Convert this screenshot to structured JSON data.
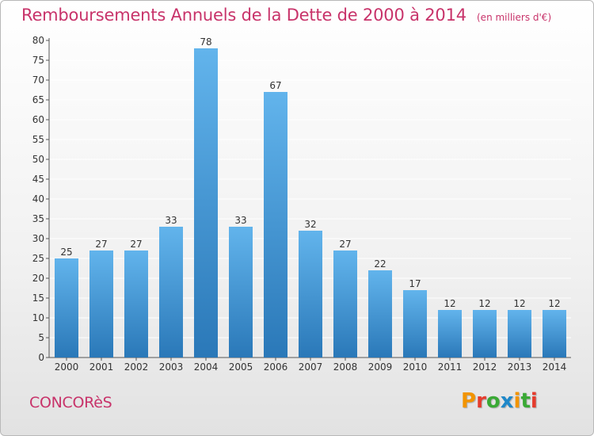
{
  "header": {
    "title": "Remboursements Annuels de la Dette de 2000 à 2014",
    "unit_note": "(en milliers d'€)"
  },
  "footer": {
    "commune": "CONCORèS",
    "logo_text": "Proxiti"
  },
  "colors": {
    "title": "#c8336a",
    "bar_top": "#62b4ec",
    "bar_bottom": "#2a78b8",
    "grid": "#ffffff",
    "logo_letters": [
      "#f29400",
      "#e53c2e",
      "#3aa935",
      "#1f88c9",
      "#f29400",
      "#3aa935",
      "#e53c2e"
    ]
  },
  "chart_data": {
    "type": "bar",
    "title": "Remboursements Annuels de la Dette de 2000 à 2014",
    "subtitle": "(en milliers d'€)",
    "categories": [
      "2000",
      "2001",
      "2002",
      "2003",
      "2004",
      "2005",
      "2006",
      "2007",
      "2008",
      "2009",
      "2010",
      "2011",
      "2012",
      "2013",
      "2014"
    ],
    "values": [
      25,
      27,
      27,
      33,
      78,
      33,
      67,
      32,
      27,
      22,
      17,
      12,
      12,
      12,
      12
    ],
    "ylim": [
      0,
      80
    ],
    "yticks": [
      0,
      5,
      10,
      15,
      20,
      25,
      30,
      35,
      40,
      45,
      50,
      55,
      60,
      65,
      70,
      75,
      80
    ],
    "data_labels": true,
    "grid": true
  }
}
